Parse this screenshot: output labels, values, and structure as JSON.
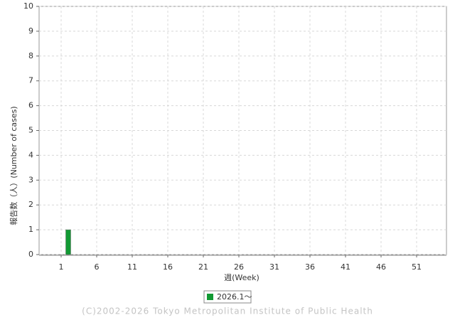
{
  "chart_data": {
    "type": "bar",
    "x": [
      1,
      2,
      3,
      4,
      5,
      6,
      7,
      8,
      9,
      10,
      11,
      12,
      13,
      14,
      15,
      16,
      17,
      18,
      19,
      20,
      21,
      22,
      23,
      24,
      25,
      26,
      27,
      28,
      29,
      30,
      31,
      32,
      33,
      34,
      35,
      36,
      37,
      38,
      39,
      40,
      41,
      42,
      43,
      44,
      45,
      46,
      47,
      48,
      49,
      50,
      51,
      52
    ],
    "series": [
      {
        "name": "2026.1〜",
        "color": "#119933",
        "values": [
          0,
          1,
          0,
          0,
          0,
          0,
          0,
          0,
          0,
          0,
          0,
          0,
          0,
          0,
          0,
          0,
          0,
          0,
          0,
          0,
          0,
          0,
          0,
          0,
          0,
          0,
          0,
          0,
          0,
          0,
          0,
          0,
          0,
          0,
          0,
          0,
          0,
          0,
          0,
          0,
          0,
          0,
          0,
          0,
          0,
          0,
          0,
          0,
          0,
          0,
          0,
          0
        ]
      }
    ],
    "xlim": [
      -2.1,
      55.2
    ],
    "xticks": [
      1,
      6,
      11,
      16,
      21,
      26,
      31,
      36,
      41,
      46,
      51
    ],
    "ylim": [
      0,
      10
    ],
    "yticks": [
      0,
      1,
      2,
      3,
      4,
      5,
      6,
      7,
      8,
      9,
      10
    ],
    "x_label": "週(Week)",
    "y_label": "報告数（人）(Number of cases)",
    "grid": true,
    "legend": "bottom",
    "footer": "(C)2002-2026 Tokyo Metropolitan Institute of Public Health"
  }
}
